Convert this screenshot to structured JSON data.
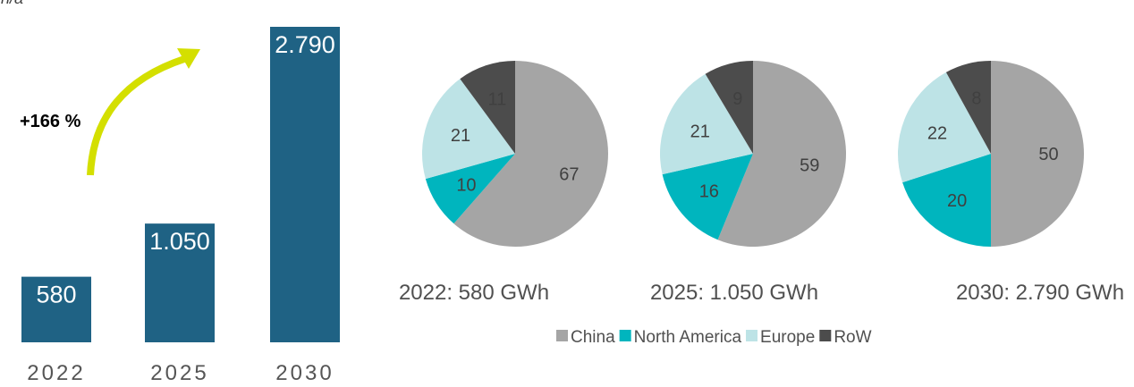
{
  "partial_title": "GWh/a",
  "colors": {
    "bar": "#1f6284",
    "China": "#a5a5a5",
    "North America": "#00b5be",
    "Europe": "#bde3e6",
    "RoW": "#4c4c4c",
    "arrow": "#d4df00"
  },
  "chart_data": [
    {
      "type": "bar",
      "categories": [
        "2022",
        "2025",
        "2030"
      ],
      "values": [
        580,
        1050,
        2790
      ],
      "value_labels": [
        "580",
        "1.050",
        "2.790"
      ],
      "annotation": "+166 %",
      "ylim": [
        0,
        2790
      ]
    },
    {
      "type": "pie",
      "caption": "2022: 580 GWh",
      "segments": [
        {
          "name": "China",
          "value": 67
        },
        {
          "name": "North America",
          "value": 10
        },
        {
          "name": "Europe",
          "value": 21
        },
        {
          "name": "RoW",
          "value": 11
        }
      ]
    },
    {
      "type": "pie",
      "caption": "2025: 1.050 GWh",
      "segments": [
        {
          "name": "China",
          "value": 59
        },
        {
          "name": "North America",
          "value": 16
        },
        {
          "name": "Europe",
          "value": 21
        },
        {
          "name": "RoW",
          "value": 9
        }
      ]
    },
    {
      "type": "pie",
      "caption": "2030: 2.790 GWh",
      "segments": [
        {
          "name": "China",
          "value": 50
        },
        {
          "name": "North America",
          "value": 20
        },
        {
          "name": "Europe",
          "value": 22
        },
        {
          "name": "RoW",
          "value": 8
        }
      ]
    }
  ],
  "legend": [
    "China",
    "North America",
    "Europe",
    "RoW"
  ]
}
